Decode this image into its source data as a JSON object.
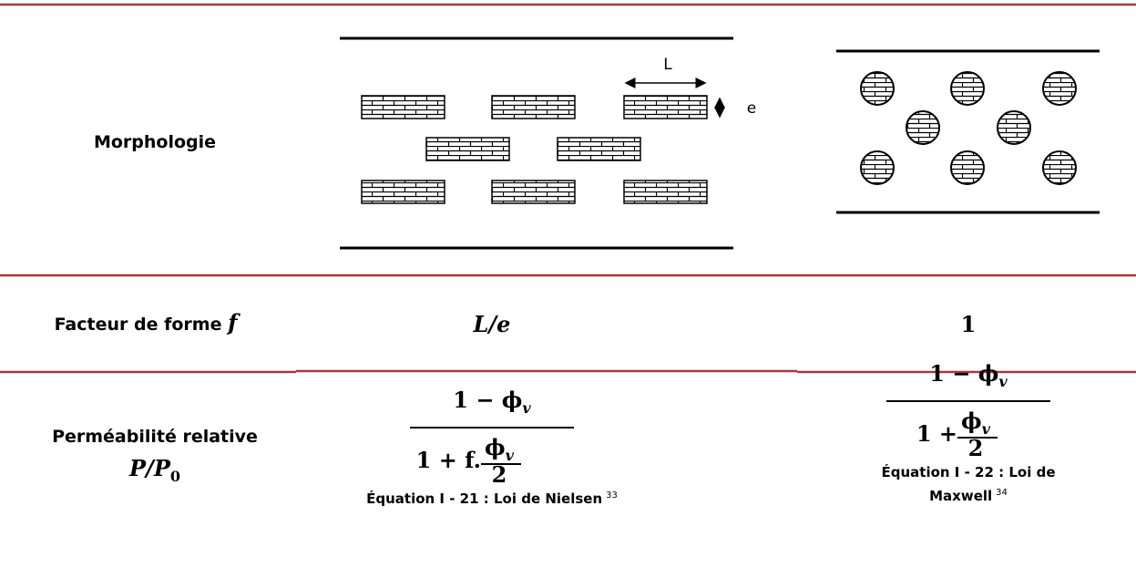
{
  "table": {
    "rows": [
      {
        "label": "Morphologie",
        "diagram": {
          "length_label": "L",
          "thickness_label": "e"
        }
      },
      {
        "label": "Facteur de forme ",
        "label_var": "f",
        "col1": "L/e",
        "col2": "1"
      },
      {
        "label": "Perméabilité relative",
        "label2": "P/P",
        "label2_sub": "0",
        "col1": {
          "numerator": "1 − ϕ",
          "numerator_sub": "v",
          "denominator": "1 + f.",
          "frac_num": "ϕ",
          "frac_sub": "v",
          "frac_den": "2",
          "caption": "Équation I - 21 : Loi de Nielsen",
          "ref": "33"
        },
        "col2": {
          "numerator": "1 − ϕ",
          "numerator_sub": "v",
          "denominator": "1 + ",
          "frac_num": "ϕ",
          "frac_sub": "v",
          "frac_den": "2",
          "caption": "Équation I - 22 : Loi de",
          "caption2": "Maxwell",
          "ref": "34"
        }
      }
    ]
  }
}
